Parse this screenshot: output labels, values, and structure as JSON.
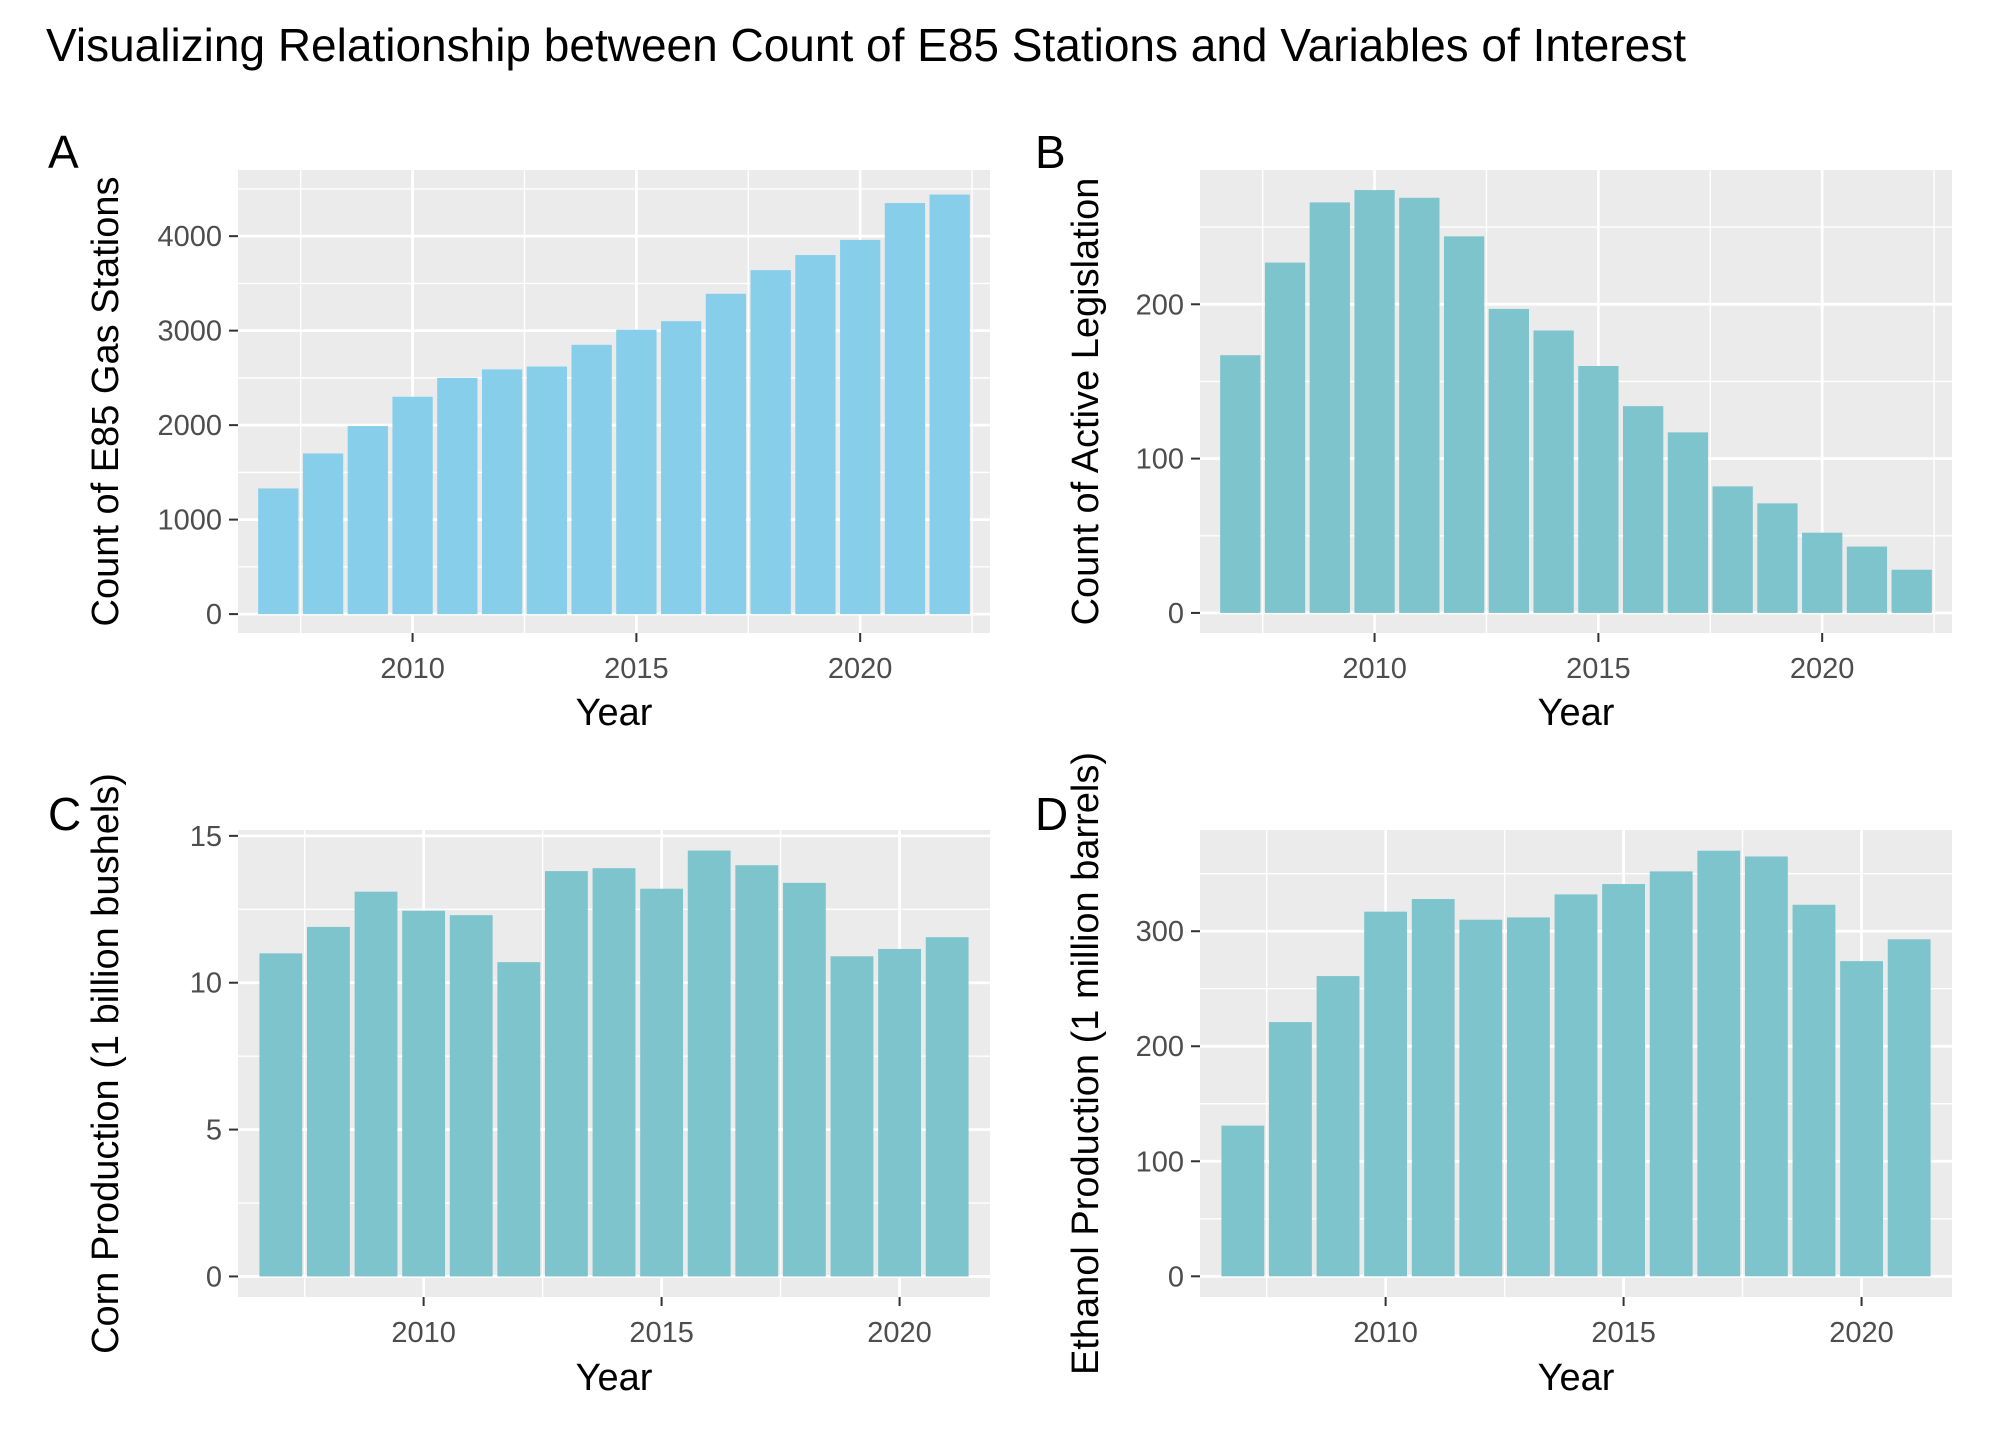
{
  "figure": {
    "title": "Visualizing Relationship between Count of E85 Stations and Variables of Interest"
  },
  "colors": {
    "panel_background": "#ebebeb",
    "gridline": "#ffffff",
    "bar_a": "#87ceeb",
    "bar_bcd": "#7ec4cc",
    "tick_text": "#4d4d4d"
  },
  "chart_data": [
    {
      "panel": "A",
      "type": "bar",
      "xlabel": "Year",
      "ylabel": "Count of E85 Gas Stations",
      "x": [
        2007,
        2008,
        2009,
        2010,
        2011,
        2012,
        2013,
        2014,
        2015,
        2016,
        2017,
        2018,
        2019,
        2020,
        2021,
        2022
      ],
      "values": [
        1330,
        1700,
        1990,
        2300,
        2500,
        2590,
        2620,
        2850,
        3010,
        3100,
        3390,
        3640,
        3800,
        3960,
        4350,
        4440
      ],
      "xlim": [
        2006.1,
        2022.9
      ],
      "ylim": [
        -200,
        4700
      ],
      "xticks": [
        2010,
        2015,
        2020
      ],
      "yticks": [
        0,
        1000,
        2000,
        3000,
        4000
      ],
      "grid": true,
      "color": "#87ceeb"
    },
    {
      "panel": "B",
      "type": "bar",
      "xlabel": "Year",
      "ylabel": "Count of Active Legislation",
      "x": [
        2007,
        2008,
        2009,
        2010,
        2011,
        2012,
        2013,
        2014,
        2015,
        2016,
        2017,
        2018,
        2019,
        2020,
        2021,
        2022
      ],
      "values": [
        167,
        227,
        266,
        274,
        269,
        244,
        197,
        183,
        160,
        134,
        117,
        82,
        71,
        52,
        43,
        28
      ],
      "xlim": [
        2006.1,
        2022.9
      ],
      "ylim": [
        -13,
        287
      ],
      "xticks": [
        2010,
        2015,
        2020
      ],
      "yticks": [
        0,
        100,
        200
      ],
      "grid": true,
      "color": "#7ec4cc"
    },
    {
      "panel": "C",
      "type": "bar",
      "xlabel": "Year",
      "ylabel": "Corn Production (1 billion bushels)",
      "x": [
        2007,
        2008,
        2009,
        2010,
        2011,
        2012,
        2013,
        2014,
        2015,
        2016,
        2017,
        2018,
        2019,
        2020,
        2021
      ],
      "values": [
        11.0,
        11.9,
        13.1,
        12.45,
        12.3,
        10.7,
        13.8,
        13.9,
        13.2,
        14.5,
        14.0,
        13.4,
        10.9,
        11.15,
        11.55
      ],
      "xlim": [
        2006.1,
        2021.9
      ],
      "ylim": [
        -0.7,
        15.2
      ],
      "xticks": [
        2010,
        2015,
        2020
      ],
      "yticks": [
        0,
        5,
        10,
        15
      ],
      "grid": true,
      "color": "#7ec4cc"
    },
    {
      "panel": "D",
      "type": "bar",
      "xlabel": "Year",
      "ylabel": "Ethanol Production (1 million barrels)",
      "x": [
        2007,
        2008,
        2009,
        2010,
        2011,
        2012,
        2013,
        2014,
        2015,
        2016,
        2017,
        2018,
        2019,
        2020,
        2021
      ],
      "values": [
        131,
        221,
        261,
        317,
        328,
        310,
        312,
        332,
        341,
        352,
        370,
        365,
        323,
        274,
        293
      ],
      "xlim": [
        2006.1,
        2021.9
      ],
      "ylim": [
        -18,
        388
      ],
      "xticks": [
        2010,
        2015,
        2020
      ],
      "yticks": [
        0,
        100,
        200,
        300
      ],
      "grid": true,
      "color": "#7ec4cc"
    }
  ]
}
